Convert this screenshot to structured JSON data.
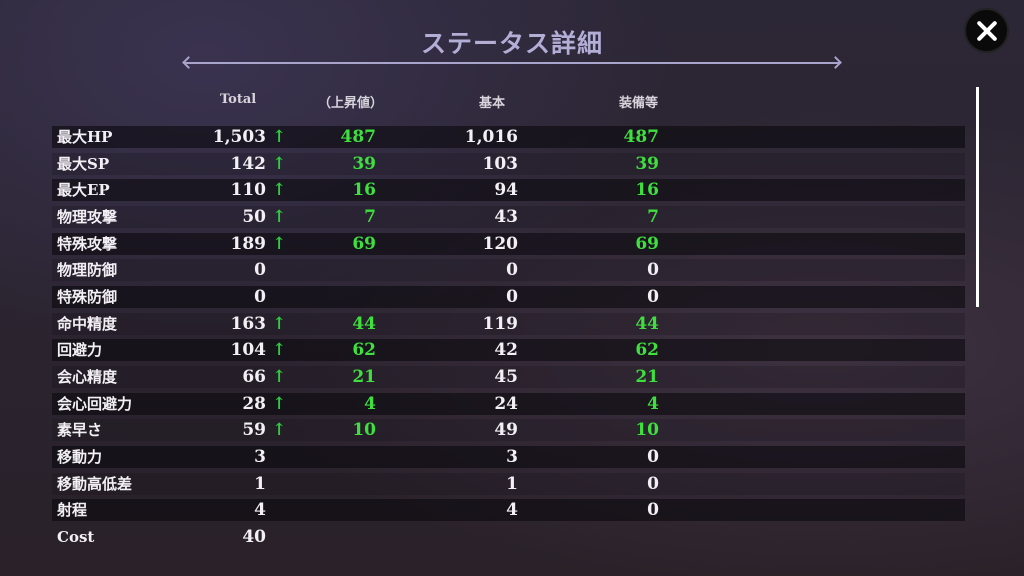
{
  "title": "ステータス詳細",
  "headers": {
    "total": "Total",
    "increase": "（上昇値）",
    "base": "基本",
    "equip": "装備等"
  },
  "colors": {
    "increase": "#3ee03e",
    "title": "#b3aed6"
  },
  "rows": [
    {
      "label": "最大HP",
      "total": "1,503",
      "arrow": "↑",
      "increase": "487",
      "base": "1,016",
      "equip": "487"
    },
    {
      "label": "最大SP",
      "total": "142",
      "arrow": "↑",
      "increase": "39",
      "base": "103",
      "equip": "39"
    },
    {
      "label": "最大EP",
      "total": "110",
      "arrow": "↑",
      "increase": "16",
      "base": "94",
      "equip": "16"
    },
    {
      "label": "物理攻撃",
      "total": "50",
      "arrow": "↑",
      "increase": "7",
      "base": "43",
      "equip": "7"
    },
    {
      "label": "特殊攻撃",
      "total": "189",
      "arrow": "↑",
      "increase": "69",
      "base": "120",
      "equip": "69"
    },
    {
      "label": "物理防御",
      "total": "0",
      "arrow": "",
      "increase": "",
      "base": "0",
      "equip": "0"
    },
    {
      "label": "特殊防御",
      "total": "0",
      "arrow": "",
      "increase": "",
      "base": "0",
      "equip": "0"
    },
    {
      "label": "命中精度",
      "total": "163",
      "arrow": "↑",
      "increase": "44",
      "base": "119",
      "equip": "44"
    },
    {
      "label": "回避力",
      "total": "104",
      "arrow": "↑",
      "increase": "62",
      "base": "42",
      "equip": "62"
    },
    {
      "label": "会心精度",
      "total": "66",
      "arrow": "↑",
      "increase": "21",
      "base": "45",
      "equip": "21"
    },
    {
      "label": "会心回避力",
      "total": "28",
      "arrow": "↑",
      "increase": "4",
      "base": "24",
      "equip": "4"
    },
    {
      "label": "素早さ",
      "total": "59",
      "arrow": "↑",
      "increase": "10",
      "base": "49",
      "equip": "10"
    },
    {
      "label": "移動力",
      "total": "3",
      "arrow": "",
      "increase": "",
      "base": "3",
      "equip": "0"
    },
    {
      "label": "移動高低差",
      "total": "1",
      "arrow": "",
      "increase": "",
      "base": "1",
      "equip": "0"
    },
    {
      "label": "射程",
      "total": "4",
      "arrow": "",
      "increase": "",
      "base": "4",
      "equip": "0"
    },
    {
      "label": "Cost",
      "total": "40",
      "arrow": "",
      "increase": "",
      "base": "",
      "equip": ""
    }
  ]
}
